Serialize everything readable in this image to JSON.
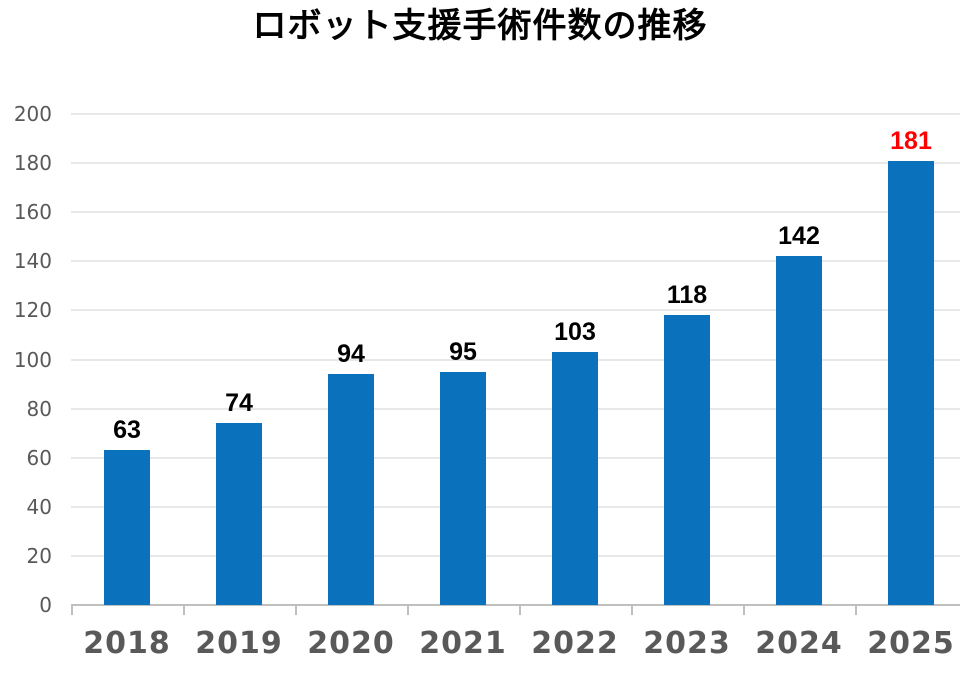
{
  "chart_data": {
    "type": "bar",
    "title": "ロボット支援手術件数の推移",
    "categories": [
      "2018",
      "2019",
      "2020",
      "2021",
      "2022",
      "2023",
      "2024",
      "2025"
    ],
    "values": [
      63,
      74,
      94,
      95,
      103,
      118,
      142,
      181
    ],
    "value_labels": [
      "63",
      "74",
      "94",
      "95",
      "103",
      "118",
      "142",
      "181"
    ],
    "value_label_colors": [
      "#000000",
      "#000000",
      "#000000",
      "#000000",
      "#000000",
      "#000000",
      "#000000",
      "#ff0000"
    ],
    "xlabel": "",
    "ylabel": "",
    "ylim": [
      0,
      200
    ],
    "ytick_step": 20,
    "ytick_labels": [
      "0",
      "20",
      "40",
      "60",
      "80",
      "100",
      "120",
      "140",
      "160",
      "180",
      "200"
    ],
    "grid": "horizontal gridlines on",
    "legend": "none",
    "colors": {
      "bar": "#0a72bd",
      "title_text": "#000000",
      "value_label": "#000000",
      "highlight_value_label": "#ff0000",
      "axis_text": "#595959",
      "gridline": "#e8e8e8",
      "axis_line": "#bfbfbf",
      "background": "#ffffff"
    }
  }
}
